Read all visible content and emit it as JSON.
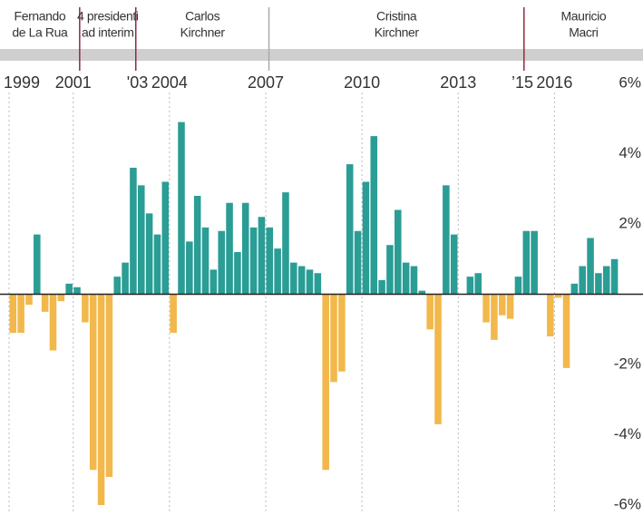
{
  "chart_data": {
    "type": "bar",
    "presidents": [
      {
        "name": [
          "Fernando",
          "de La Rua"
        ],
        "start": 1999,
        "line_color": null
      },
      {
        "name": [
          "4 presidenti",
          "ad interim"
        ],
        "start": 2001.2,
        "line_color": "#8e2b3c"
      },
      {
        "name": [
          "Carlos",
          "Kirchner"
        ],
        "start": 2002.95,
        "line_color": "#8e2b3c"
      },
      {
        "name": [
          "Cristina",
          "Kirchner"
        ],
        "start": 2007.1,
        "line_color": "#aaaaaa"
      },
      {
        "name": [
          "Mauricio",
          "Macri"
        ],
        "start": 2015.05,
        "line_color": "#8e2b3c"
      }
    ],
    "year_markers": [
      {
        "value": 1999,
        "label": "1999"
      },
      {
        "value": 2001,
        "label": "2001"
      },
      {
        "value": 2003,
        "label": "'03"
      },
      {
        "value": 2004,
        "label": "2004"
      },
      {
        "value": 2007,
        "label": "2007"
      },
      {
        "value": 2010,
        "label": "2010"
      },
      {
        "value": 2013,
        "label": "2013"
      },
      {
        "value": 2015,
        "label": "’15"
      },
      {
        "value": 2016,
        "label": "2016"
      }
    ],
    "xgrid": [
      1999,
      2001,
      2004,
      2007,
      2010,
      2013,
      2016
    ],
    "x": [
      1999,
      1999.25,
      1999.5,
      1999.75,
      2000,
      2000.25,
      2000.5,
      2000.75,
      2001,
      2001.25,
      2001.5,
      2001.75,
      2002,
      2002.25,
      2002.5,
      2002.75,
      2003,
      2003.25,
      2003.5,
      2003.75,
      2004,
      2004.25,
      2004.5,
      2004.75,
      2005,
      2005.25,
      2005.5,
      2005.75,
      2006,
      2006.25,
      2006.5,
      2006.75,
      2007,
      2007.25,
      2007.5,
      2007.75,
      2008,
      2008.25,
      2008.5,
      2008.75,
      2009,
      2009.25,
      2009.5,
      2009.75,
      2010,
      2010.25,
      2010.5,
      2010.75,
      2011,
      2011.25,
      2011.5,
      2011.75,
      2012,
      2012.25,
      2012.5,
      2012.75,
      2013,
      2013.25,
      2013.5,
      2013.75,
      2014,
      2014.25,
      2014.5,
      2014.75,
      2015,
      2015.25,
      2015.5,
      2015.75,
      2016,
      2016.25,
      2016.5,
      2016.75,
      2017,
      2017.25,
      2017.5,
      2017.75
    ],
    "values": [
      -1.1,
      -1.1,
      -0.3,
      1.7,
      -0.5,
      -1.6,
      -0.2,
      0.3,
      0.2,
      -0.8,
      -5.0,
      -6.0,
      -5.2,
      0.5,
      0.9,
      3.6,
      3.1,
      2.3,
      1.7,
      3.2,
      -1.1,
      4.9,
      1.5,
      2.8,
      1.9,
      0.7,
      1.8,
      2.6,
      1.2,
      2.6,
      1.9,
      2.2,
      1.9,
      1.3,
      2.9,
      0.9,
      0.8,
      0.7,
      0.6,
      -5.0,
      -2.5,
      -2.2,
      3.7,
      1.8,
      3.2,
      4.5,
      0.4,
      1.4,
      2.4,
      0.9,
      0.8,
      0.1,
      -1.0,
      -3.7,
      3.1,
      1.7,
      0.0,
      0.5,
      0.6,
      -0.8,
      -1.3,
      -0.6,
      -0.7,
      0.5,
      1.8,
      1.8,
      0.0,
      -1.2,
      -0.1,
      -2.1,
      0.3,
      0.8,
      1.6,
      0.6,
      0.8,
      1.0
    ],
    "positive_color": "#2a9d95",
    "negative_color": "#f2b84b",
    "xlim": [
      1999,
      2018.25
    ],
    "ylim": [
      -6,
      6
    ],
    "yticks": [
      {
        "value": 6,
        "label": "6%"
      },
      {
        "value": 4,
        "label": "4%"
      },
      {
        "value": 2,
        "label": "2%"
      },
      {
        "value": -2,
        "label": "-2%"
      },
      {
        "value": -4,
        "label": "-4%"
      },
      {
        "value": -6,
        "label": "-6%"
      }
    ]
  }
}
